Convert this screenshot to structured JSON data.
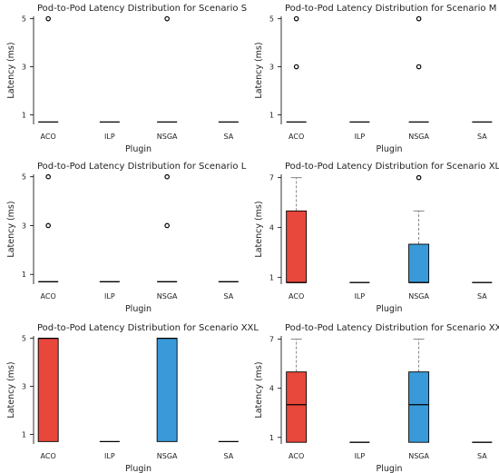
{
  "figure": {
    "ylabel": "Latency (ms)",
    "xlabel": "Plugin",
    "colors": {
      "ACO": "#e8473b",
      "NSGA": "#3a9ad9",
      "line": "#000000",
      "whisker": "#777777"
    }
  },
  "chart_data": [
    {
      "type": "boxplot",
      "title": "Pod-to-Pod Latency Distribution for Scenario S",
      "categories": [
        "ACO",
        "ILP",
        "NSGA",
        "SA"
      ],
      "ylim": [
        0.6,
        5.1
      ],
      "yticks": [
        1,
        3,
        5
      ],
      "boxes": [
        {
          "category": "ACO",
          "q1": 0.7,
          "median": 0.7,
          "q3": 0.7,
          "whisker_low": 0.7,
          "whisker_high": 0.7,
          "outliers": [
            5
          ]
        },
        {
          "category": "ILP",
          "q1": 0.7,
          "median": 0.7,
          "q3": 0.7,
          "whisker_low": 0.7,
          "whisker_high": 0.7,
          "outliers": []
        },
        {
          "category": "NSGA",
          "q1": 0.7,
          "median": 0.7,
          "q3": 0.7,
          "whisker_low": 0.7,
          "whisker_high": 0.7,
          "outliers": [
            5
          ]
        },
        {
          "category": "SA",
          "q1": 0.7,
          "median": 0.7,
          "q3": 0.7,
          "whisker_low": 0.7,
          "whisker_high": 0.7,
          "outliers": []
        }
      ]
    },
    {
      "type": "boxplot",
      "title": "Pod-to-Pod Latency Distribution for Scenario M",
      "categories": [
        "ACO",
        "ILP",
        "NSGA",
        "SA"
      ],
      "ylim": [
        0.6,
        5.1
      ],
      "yticks": [
        1,
        3,
        5
      ],
      "boxes": [
        {
          "category": "ACO",
          "q1": 0.7,
          "median": 0.7,
          "q3": 0.7,
          "whisker_low": 0.7,
          "whisker_high": 0.7,
          "outliers": [
            3,
            5
          ]
        },
        {
          "category": "ILP",
          "q1": 0.7,
          "median": 0.7,
          "q3": 0.7,
          "whisker_low": 0.7,
          "whisker_high": 0.7,
          "outliers": []
        },
        {
          "category": "NSGA",
          "q1": 0.7,
          "median": 0.7,
          "q3": 0.7,
          "whisker_low": 0.7,
          "whisker_high": 0.7,
          "outliers": [
            3,
            5
          ]
        },
        {
          "category": "SA",
          "q1": 0.7,
          "median": 0.7,
          "q3": 0.7,
          "whisker_low": 0.7,
          "whisker_high": 0.7,
          "outliers": []
        }
      ]
    },
    {
      "type": "boxplot",
      "title": "Pod-to-Pod Latency Distribution for Scenario L",
      "categories": [
        "ACO",
        "ILP",
        "NSGA",
        "SA"
      ],
      "ylim": [
        0.6,
        5.1
      ],
      "yticks": [
        1,
        3,
        5
      ],
      "boxes": [
        {
          "category": "ACO",
          "q1": 0.7,
          "median": 0.7,
          "q3": 0.7,
          "whisker_low": 0.7,
          "whisker_high": 0.7,
          "outliers": [
            3,
            5
          ]
        },
        {
          "category": "ILP",
          "q1": 0.7,
          "median": 0.7,
          "q3": 0.7,
          "whisker_low": 0.7,
          "whisker_high": 0.7,
          "outliers": []
        },
        {
          "category": "NSGA",
          "q1": 0.7,
          "median": 0.7,
          "q3": 0.7,
          "whisker_low": 0.7,
          "whisker_high": 0.7,
          "outliers": [
            3,
            5
          ]
        },
        {
          "category": "SA",
          "q1": 0.7,
          "median": 0.7,
          "q3": 0.7,
          "whisker_low": 0.7,
          "whisker_high": 0.7,
          "outliers": []
        }
      ]
    },
    {
      "type": "boxplot",
      "title": "Pod-to-Pod Latency Distribution for Scenario XL",
      "categories": [
        "ACO",
        "ILP",
        "NSGA",
        "SA"
      ],
      "ylim": [
        0.6,
        7.2
      ],
      "yticks": [
        1,
        4,
        7
      ],
      "boxes": [
        {
          "category": "ACO",
          "q1": 0.7,
          "median": 0.7,
          "q3": 5,
          "whisker_low": 0.7,
          "whisker_high": 7,
          "outliers": []
        },
        {
          "category": "ILP",
          "q1": 0.7,
          "median": 0.7,
          "q3": 0.7,
          "whisker_low": 0.7,
          "whisker_high": 0.7,
          "outliers": []
        },
        {
          "category": "NSGA",
          "q1": 0.7,
          "median": 0.7,
          "q3": 3,
          "whisker_low": 0.7,
          "whisker_high": 5,
          "outliers": [
            7
          ]
        },
        {
          "category": "SA",
          "q1": 0.7,
          "median": 0.7,
          "q3": 0.7,
          "whisker_low": 0.7,
          "whisker_high": 0.7,
          "outliers": []
        }
      ]
    },
    {
      "type": "boxplot",
      "title": "Pod-to-Pod Latency Distribution for Scenario XXL",
      "categories": [
        "ACO",
        "ILP",
        "NSGA",
        "SA"
      ],
      "ylim": [
        0.6,
        5.1
      ],
      "yticks": [
        1,
        3,
        5
      ],
      "boxes": [
        {
          "category": "ACO",
          "q1": 0.7,
          "median": 5,
          "q3": 5,
          "whisker_low": 0.7,
          "whisker_high": 5,
          "outliers": []
        },
        {
          "category": "ILP",
          "q1": 0.7,
          "median": 0.7,
          "q3": 0.7,
          "whisker_low": 0.7,
          "whisker_high": 0.7,
          "outliers": []
        },
        {
          "category": "NSGA",
          "q1": 0.7,
          "median": 5,
          "q3": 5,
          "whisker_low": 0.7,
          "whisker_high": 5,
          "outliers": []
        },
        {
          "category": "SA",
          "q1": 0.7,
          "median": 0.7,
          "q3": 0.7,
          "whisker_low": 0.7,
          "whisker_high": 0.7,
          "outliers": []
        }
      ]
    },
    {
      "type": "boxplot",
      "title": "Pod-to-Pod Latency Distribution for Scenario XXXL",
      "categories": [
        "ACO",
        "ILP",
        "NSGA",
        "SA"
      ],
      "ylim": [
        0.6,
        7.2
      ],
      "yticks": [
        1,
        4,
        7
      ],
      "boxes": [
        {
          "category": "ACO",
          "q1": 0.7,
          "median": 3,
          "q3": 5,
          "whisker_low": 0.7,
          "whisker_high": 7,
          "outliers": []
        },
        {
          "category": "ILP",
          "q1": 0.7,
          "median": 0.7,
          "q3": 0.7,
          "whisker_low": 0.7,
          "whisker_high": 0.7,
          "outliers": []
        },
        {
          "category": "NSGA",
          "q1": 0.7,
          "median": 3,
          "q3": 5,
          "whisker_low": 0.7,
          "whisker_high": 7,
          "outliers": []
        },
        {
          "category": "SA",
          "q1": 0.7,
          "median": 0.7,
          "q3": 0.7,
          "whisker_low": 0.7,
          "whisker_high": 0.7,
          "outliers": []
        }
      ]
    }
  ]
}
